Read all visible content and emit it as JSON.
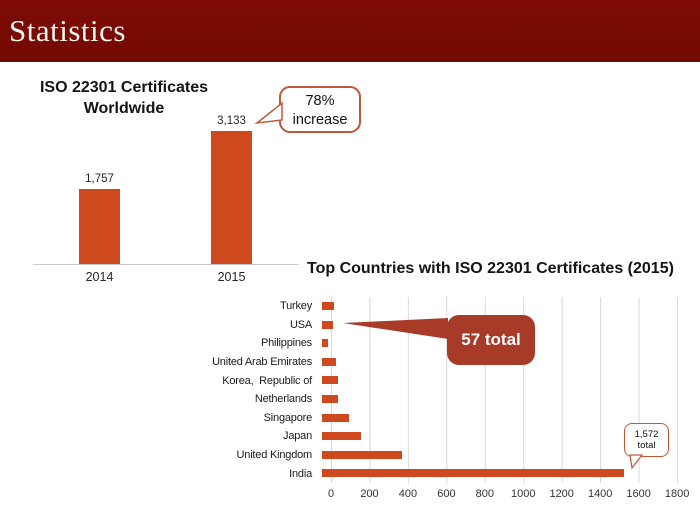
{
  "header": {
    "title": "Statistics"
  },
  "colors": {
    "header_bg": "#760B04",
    "bar_orange": "#CE4A1E",
    "callout_border": "#C0583A",
    "dark_callout_bg": "#A83A28",
    "gridline": "#D8D8D8"
  },
  "chart_data": [
    {
      "type": "bar",
      "title": "ISO 22301 Certificates Worldwide",
      "title_lines": [
        "ISO 22301 Certificates",
        "Worldwide"
      ],
      "categories": [
        "2014",
        "2015"
      ],
      "values": [
        1757,
        3133
      ],
      "value_labels": [
        "1,757",
        "3,133"
      ],
      "ylim": [
        0,
        3300
      ],
      "grid": false,
      "annotation": {
        "text": "78% increase",
        "lines": [
          "78%",
          "increase"
        ]
      },
      "bar_color": "#CE4A1E"
    },
    {
      "type": "bar",
      "orientation": "horizontal",
      "title": "Top Countries with ISO 22301 Certificates (2015)",
      "categories": [
        "Turkey",
        "USA",
        "Philippines",
        "United Arab Emirates",
        "Korea,  Republic of",
        "Netherlands",
        "Singapore",
        "Japan",
        "United Kingdom",
        "India"
      ],
      "values": [
        60,
        57,
        33,
        70,
        85,
        85,
        140,
        205,
        415,
        1572
      ],
      "xlim": [
        0,
        1800
      ],
      "xtick_labels": [
        "0",
        "200",
        "400",
        "600",
        "800",
        "1000",
        "1200",
        "1400",
        "1600",
        "1800"
      ],
      "grid": "vertical",
      "annotations": [
        {
          "text": "57 total",
          "target_category": "USA"
        },
        {
          "text": "1,572 total",
          "lines": [
            "1,572",
            "total"
          ],
          "target_category": "India"
        }
      ],
      "bar_color": "#CE4A1E"
    }
  ]
}
